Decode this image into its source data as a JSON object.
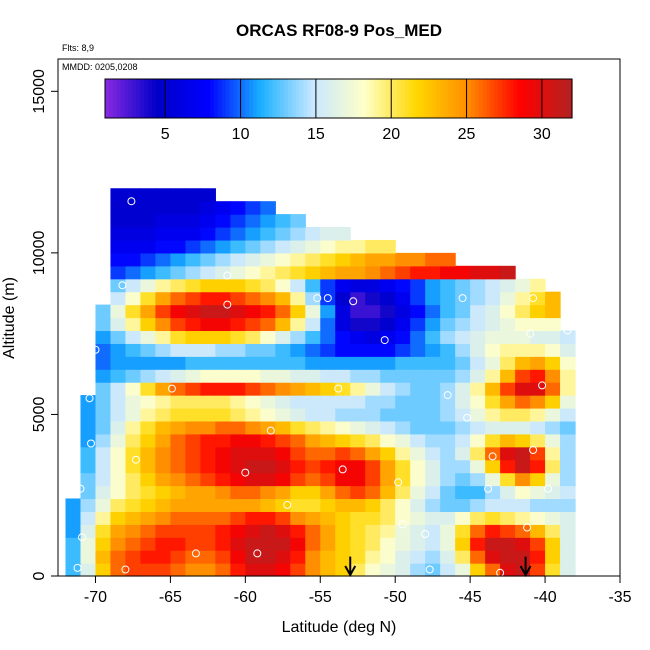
{
  "chart_data": {
    "type": "heatmap",
    "title": "ORCAS RF08-9 Pos_MED",
    "xlabel": "Latitude (deg N)",
    "ylabel": "Altitude (m)",
    "annotations": [
      "Flts: 8,9",
      "MMDD: 0205,0208"
    ],
    "xlim": [
      -72.5,
      -35
    ],
    "ylim": [
      0,
      16000
    ],
    "x_ticks": [
      -70,
      -65,
      -60,
      -55,
      -50,
      -45,
      -40,
      -35
    ],
    "y_ticks": [
      0,
      5000,
      10000,
      15000
    ],
    "colorbar": {
      "range": [
        1,
        32
      ],
      "ticks": [
        5,
        10,
        15,
        20,
        25,
        30
      ],
      "colors": [
        "#8a2be2",
        "#0000c8",
        "#0000ff",
        "#1ab0ff",
        "#c8e8ff",
        "#ffffc8",
        "#ffd700",
        "#ff8c00",
        "#ff0000",
        "#b22222"
      ]
    },
    "altitude_levels": [
      200,
      600,
      1000,
      1400,
      1800,
      2200,
      2600,
      3000,
      3400,
      3800,
      4200,
      4600,
      5000,
      5400,
      5800,
      6200,
      6600,
      7000,
      7400,
      7800,
      8200,
      8600,
      9000,
      9400,
      9800,
      10200,
      10600,
      11000,
      11400,
      11800
    ],
    "latitude_columns": [
      -71.5,
      -70.5,
      -69.5,
      -68.5,
      -67.5,
      -66.5,
      -65.5,
      -64.5,
      -63.5,
      -62.5,
      -61.5,
      -60.5,
      -59.5,
      -58.5,
      -57.5,
      -56.5,
      -55.5,
      -54.5,
      -53.5,
      -52.5,
      -51.5,
      -50.5,
      -49.5,
      -48.5,
      -47.5,
      -46.5,
      -45.5,
      -44.5,
      -43.5,
      -42.5,
      -41.5,
      -40.5,
      -39.5,
      -38.5
    ],
    "profile_top_altitude": [
      2500,
      5600,
      8200,
      11800,
      11800,
      11800,
      11800,
      11800,
      11800,
      11800,
      11700,
      11600,
      11500,
      11400,
      11300,
      11100,
      10900,
      10800,
      10600,
      10500,
      10400,
      10300,
      10100,
      10000,
      9900,
      9800,
      9700,
      9600,
      9500,
      9400,
      9300,
      9100,
      8800,
      7600
    ],
    "profile_sample_points": [
      {
        "lat": -70.9,
        "alt": 1200
      },
      {
        "lat": -70.0,
        "alt": 7000
      },
      {
        "lat": -71.2,
        "alt": 250
      },
      {
        "lat": -70.4,
        "alt": 5500
      },
      {
        "lat": -71.0,
        "alt": 2700
      },
      {
        "lat": -70.3,
        "alt": 4100
      },
      {
        "lat": -68.2,
        "alt": 9000
      },
      {
        "lat": -67.6,
        "alt": 11600
      },
      {
        "lat": -68.0,
        "alt": 200
      },
      {
        "lat": -67.3,
        "alt": 3600
      },
      {
        "lat": -64.9,
        "alt": 5800
      },
      {
        "lat": -63.3,
        "alt": 700
      },
      {
        "lat": -61.2,
        "alt": 9300
      },
      {
        "lat": -61.2,
        "alt": 8400
      },
      {
        "lat": -60.0,
        "alt": 3200
      },
      {
        "lat": -59.2,
        "alt": 700
      },
      {
        "lat": -58.3,
        "alt": 4500
      },
      {
        "lat": -57.2,
        "alt": 2200
      },
      {
        "lat": -55.2,
        "alt": 8600
      },
      {
        "lat": -54.5,
        "alt": 8600
      },
      {
        "lat": -53.5,
        "alt": 3300
      },
      {
        "lat": -53.8,
        "alt": 5800
      },
      {
        "lat": -52.8,
        "alt": 8500
      },
      {
        "lat": -50.7,
        "alt": 7300
      },
      {
        "lat": -49.8,
        "alt": 2900
      },
      {
        "lat": -49.5,
        "alt": 1600
      },
      {
        "lat": -48.0,
        "alt": 1300
      },
      {
        "lat": -47.7,
        "alt": 200
      },
      {
        "lat": -46.5,
        "alt": 5600
      },
      {
        "lat": -45.5,
        "alt": 8600
      },
      {
        "lat": -45.2,
        "alt": 4900
      },
      {
        "lat": -43.8,
        "alt": 2700
      },
      {
        "lat": -43.5,
        "alt": 3700
      },
      {
        "lat": -43.0,
        "alt": 100
      },
      {
        "lat": -41.2,
        "alt": 1500
      },
      {
        "lat": -40.8,
        "alt": 3900
      },
      {
        "lat": -40.2,
        "alt": 5900
      },
      {
        "lat": -40.8,
        "alt": 8600
      },
      {
        "lat": -39.5,
        "alt": 9000
      },
      {
        "lat": -38.5,
        "alt": 7600
      },
      {
        "lat": -41.0,
        "alt": 7500
      },
      {
        "lat": -39.8,
        "alt": 2700
      }
    ],
    "arrows_at_latitude": [
      -53.0,
      -41.3
    ],
    "panel_fill_hint": {
      "note": "value field estimated visually",
      "field": [
        [
          12,
          16,
          22,
          26,
          27,
          27,
          27,
          26,
          25,
          25,
          26,
          28,
          30,
          30,
          29,
          27,
          25,
          23,
          22,
          20,
          18,
          17,
          16,
          14,
          13,
          15,
          17,
          22,
          26,
          30,
          31,
          27,
          21,
          16
        ],
        [
          12,
          17,
          23,
          26,
          27,
          28,
          28,
          27,
          26,
          26,
          27,
          29,
          31,
          31,
          30,
          28,
          25,
          23,
          22,
          21,
          19,
          18,
          16,
          15,
          14,
          16,
          20,
          26,
          30,
          31,
          31,
          28,
          22,
          16
        ],
        [
          12,
          17,
          22,
          25,
          26,
          27,
          28,
          28,
          27,
          27,
          28,
          30,
          31,
          31,
          31,
          29,
          26,
          24,
          22,
          21,
          20,
          18,
          17,
          16,
          15,
          17,
          22,
          28,
          31,
          31,
          30,
          27,
          22,
          16
        ],
        [
          11,
          16,
          21,
          24,
          25,
          26,
          27,
          27,
          27,
          27,
          28,
          29,
          30,
          31,
          30,
          28,
          26,
          24,
          22,
          21,
          20,
          19,
          17,
          16,
          15,
          17,
          21,
          26,
          28,
          27,
          26,
          23,
          20,
          16
        ],
        [
          11,
          15,
          19,
          22,
          23,
          24,
          25,
          26,
          26,
          26,
          26,
          27,
          28,
          28,
          27,
          25,
          24,
          23,
          22,
          21,
          21,
          20,
          18,
          17,
          16,
          16,
          18,
          20,
          21,
          20,
          19,
          18,
          17,
          16
        ],
        [
          11,
          14,
          17,
          20,
          21,
          22,
          23,
          24,
          24,
          24,
          24,
          24,
          24,
          23,
          22,
          21,
          21,
          22,
          23,
          23,
          22,
          20,
          18,
          16,
          14,
          13,
          13,
          14,
          15,
          15,
          15,
          14,
          14,
          14
        ],
        [
          10,
          13,
          16,
          18,
          20,
          21,
          22,
          23,
          24,
          24,
          25,
          26,
          26,
          25,
          24,
          22,
          22,
          24,
          26,
          27,
          26,
          23,
          20,
          17,
          15,
          13,
          12,
          12,
          14,
          16,
          18,
          17,
          16,
          15
        ],
        [
          10,
          13,
          15,
          18,
          20,
          22,
          24,
          25,
          26,
          27,
          28,
          29,
          30,
          30,
          29,
          27,
          26,
          27,
          29,
          29,
          27,
          24,
          21,
          18,
          16,
          14,
          13,
          14,
          17,
          21,
          25,
          22,
          17,
          14
        ],
        [
          10,
          12,
          15,
          18,
          21,
          23,
          25,
          26,
          27,
          28,
          29,
          30,
          31,
          31,
          30,
          28,
          27,
          28,
          29,
          29,
          27,
          24,
          21,
          18,
          16,
          14,
          14,
          17,
          22,
          28,
          31,
          28,
          20,
          14
        ],
        [
          9,
          12,
          15,
          18,
          21,
          23,
          25,
          26,
          27,
          28,
          29,
          30,
          30,
          30,
          29,
          27,
          26,
          26,
          27,
          26,
          24,
          22,
          19,
          17,
          15,
          14,
          16,
          20,
          26,
          30,
          31,
          27,
          19,
          14
        ],
        [
          9,
          11,
          14,
          17,
          20,
          22,
          24,
          26,
          27,
          28,
          28,
          29,
          29,
          28,
          27,
          26,
          24,
          23,
          22,
          21,
          20,
          18,
          17,
          15,
          14,
          14,
          15,
          18,
          21,
          23,
          22,
          20,
          17,
          14
        ],
        [
          9,
          11,
          13,
          16,
          19,
          21,
          23,
          24,
          25,
          25,
          26,
          26,
          25,
          24,
          23,
          21,
          20,
          19,
          18,
          17,
          16,
          15,
          14,
          13,
          13,
          13,
          14,
          15,
          16,
          16,
          16,
          15,
          14,
          13
        ],
        [
          9,
          11,
          13,
          15,
          17,
          19,
          20,
          21,
          21,
          21,
          21,
          20,
          19,
          18,
          17,
          16,
          15,
          15,
          14,
          14,
          14,
          13,
          13,
          13,
          13,
          14,
          15,
          17,
          19,
          20,
          20,
          19,
          17,
          15
        ],
        [
          9,
          11,
          13,
          15,
          17,
          18,
          19,
          20,
          20,
          20,
          20,
          19,
          18,
          17,
          16,
          15,
          15,
          15,
          15,
          15,
          14,
          14,
          13,
          13,
          13,
          14,
          16,
          18,
          21,
          24,
          26,
          25,
          22,
          17
        ],
        [
          9,
          11,
          13,
          15,
          18,
          21,
          24,
          26,
          27,
          28,
          28,
          28,
          27,
          26,
          25,
          24,
          23,
          22,
          21,
          19,
          17,
          15,
          14,
          13,
          13,
          14,
          16,
          19,
          23,
          27,
          30,
          30,
          26,
          19
        ],
        [
          9,
          10,
          11,
          12,
          13,
          14,
          15,
          16,
          17,
          18,
          18,
          18,
          18,
          17,
          17,
          16,
          16,
          15,
          15,
          14,
          14,
          13,
          13,
          13,
          13,
          13,
          14,
          16,
          19,
          23,
          27,
          28,
          25,
          19
        ],
        [
          9,
          10,
          10,
          11,
          11,
          11,
          11,
          11,
          12,
          12,
          12,
          12,
          12,
          12,
          12,
          12,
          11,
          11,
          11,
          11,
          11,
          11,
          12,
          12,
          12,
          12,
          13,
          15,
          17,
          20,
          23,
          24,
          22,
          18
        ],
        [
          8,
          9,
          10,
          11,
          12,
          13,
          14,
          15,
          15,
          15,
          14,
          14,
          13,
          13,
          12,
          11,
          10,
          9,
          8,
          8,
          8,
          8,
          9,
          10,
          11,
          12,
          14,
          16,
          18,
          19,
          19,
          19,
          18,
          16
        ],
        [
          8,
          9,
          11,
          13,
          15,
          17,
          19,
          21,
          22,
          22,
          22,
          21,
          20,
          18,
          16,
          14,
          12,
          10,
          8,
          7,
          6,
          7,
          8,
          10,
          12,
          14,
          15,
          16,
          17,
          17,
          17,
          16,
          16,
          15
        ],
        [
          8,
          10,
          13,
          16,
          19,
          22,
          25,
          27,
          28,
          29,
          29,
          28,
          27,
          26,
          23,
          19,
          15,
          10,
          6,
          4,
          4,
          5,
          7,
          9,
          11,
          13,
          14,
          15,
          16,
          17,
          18,
          18,
          18,
          17
        ],
        [
          8,
          10,
          13,
          17,
          21,
          24,
          27,
          29,
          30,
          31,
          31,
          30,
          29,
          28,
          26,
          22,
          17,
          11,
          6,
          3,
          3,
          4,
          6,
          8,
          10,
          12,
          13,
          15,
          16,
          18,
          20,
          22,
          23,
          22
        ],
        [
          8,
          9,
          12,
          15,
          18,
          21,
          24,
          26,
          27,
          28,
          28,
          27,
          26,
          25,
          23,
          19,
          14,
          9,
          5,
          3,
          4,
          5,
          7,
          9,
          11,
          12,
          13,
          14,
          15,
          17,
          19,
          21,
          23,
          23
        ],
        [
          8,
          9,
          11,
          13,
          15,
          17,
          19,
          20,
          21,
          22,
          22,
          22,
          21,
          20,
          18,
          15,
          12,
          9,
          7,
          6,
          6,
          7,
          8,
          9,
          11,
          12,
          13,
          14,
          15,
          16,
          17,
          19,
          21,
          21
        ],
        [
          7,
          7,
          8,
          9,
          10,
          11,
          12,
          13,
          14,
          15,
          16,
          17,
          18,
          19,
          20,
          21,
          22,
          23,
          24,
          24,
          25,
          26,
          27,
          28,
          28,
          29,
          29,
          30,
          30,
          31,
          30,
          28,
          26,
          24
        ],
        [
          7,
          7,
          7,
          8,
          8,
          9,
          10,
          11,
          12,
          13,
          14,
          15,
          16,
          17,
          18,
          19,
          20,
          21,
          22,
          23,
          24,
          24,
          25,
          25,
          26,
          26,
          27,
          27,
          27,
          27,
          26,
          25,
          24,
          22
        ],
        [
          6,
          6,
          6,
          7,
          7,
          7,
          8,
          8,
          9,
          10,
          11,
          12,
          13,
          14,
          15,
          16,
          17,
          18,
          19,
          19,
          20,
          20,
          21,
          21,
          22,
          22,
          22,
          22,
          22,
          21,
          21,
          20,
          19,
          18
        ],
        [
          6,
          6,
          6,
          6,
          6,
          6,
          7,
          7,
          7,
          8,
          9,
          10,
          11,
          12,
          13,
          14,
          15,
          16,
          16,
          17,
          17,
          18,
          18,
          18,
          18,
          18,
          18,
          18,
          17,
          17,
          16,
          16,
          15,
          15
        ],
        [
          5,
          5,
          5,
          5,
          5,
          5,
          6,
          6,
          6,
          7,
          8,
          9,
          10,
          11,
          12,
          13,
          13,
          14,
          14,
          14,
          15,
          15,
          15,
          15,
          15,
          15,
          14,
          14,
          14,
          13,
          13,
          13,
          13,
          13
        ],
        [
          5,
          5,
          5,
          5,
          5,
          5,
          5,
          5,
          5,
          6,
          7,
          8,
          9,
          10,
          10,
          11,
          11,
          12,
          12,
          12,
          12,
          12,
          12,
          12,
          12,
          12,
          12,
          12,
          12,
          12,
          12,
          12,
          12,
          12
        ],
        [
          5,
          5,
          5,
          5,
          5,
          5,
          5,
          5,
          5,
          5,
          6,
          6,
          7,
          8,
          8,
          9,
          9,
          9,
          9,
          9,
          9,
          9,
          9,
          9,
          9,
          9,
          9,
          9,
          9,
          9,
          9,
          9,
          9,
          9
        ]
      ]
    }
  }
}
